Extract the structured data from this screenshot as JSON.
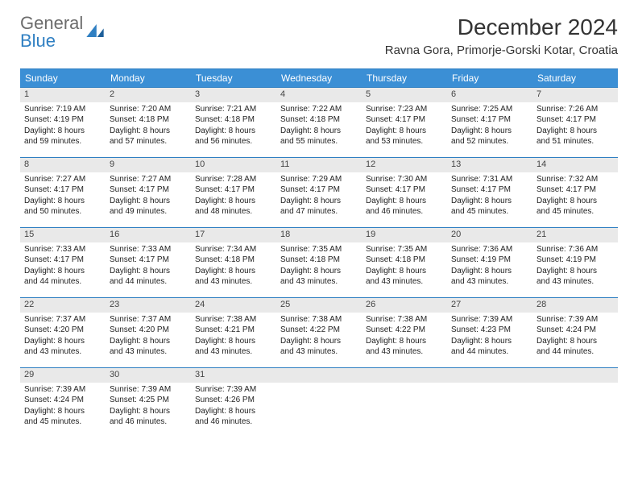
{
  "logo": {
    "text_a": "General",
    "text_b": "Blue"
  },
  "title": "December 2024",
  "location": "Ravna Gora, Primorje-Gorski Kotar, Croatia",
  "colors": {
    "headerBg": "#3b8fd5",
    "headerText": "#ffffff",
    "ruleLine": "#2f7fc2",
    "dayNumBg": "#e9e9e9",
    "bodyText": "#222222",
    "logoGray": "#6c6c6c",
    "logoBlue": "#2f7fc2"
  },
  "daysOfWeek": [
    "Sunday",
    "Monday",
    "Tuesday",
    "Wednesday",
    "Thursday",
    "Friday",
    "Saturday"
  ],
  "weeks": [
    [
      {
        "n": "1",
        "sr": "Sunrise: 7:19 AM",
        "ss": "Sunset: 4:19 PM",
        "d1": "Daylight: 8 hours",
        "d2": "and 59 minutes."
      },
      {
        "n": "2",
        "sr": "Sunrise: 7:20 AM",
        "ss": "Sunset: 4:18 PM",
        "d1": "Daylight: 8 hours",
        "d2": "and 57 minutes."
      },
      {
        "n": "3",
        "sr": "Sunrise: 7:21 AM",
        "ss": "Sunset: 4:18 PM",
        "d1": "Daylight: 8 hours",
        "d2": "and 56 minutes."
      },
      {
        "n": "4",
        "sr": "Sunrise: 7:22 AM",
        "ss": "Sunset: 4:18 PM",
        "d1": "Daylight: 8 hours",
        "d2": "and 55 minutes."
      },
      {
        "n": "5",
        "sr": "Sunrise: 7:23 AM",
        "ss": "Sunset: 4:17 PM",
        "d1": "Daylight: 8 hours",
        "d2": "and 53 minutes."
      },
      {
        "n": "6",
        "sr": "Sunrise: 7:25 AM",
        "ss": "Sunset: 4:17 PM",
        "d1": "Daylight: 8 hours",
        "d2": "and 52 minutes."
      },
      {
        "n": "7",
        "sr": "Sunrise: 7:26 AM",
        "ss": "Sunset: 4:17 PM",
        "d1": "Daylight: 8 hours",
        "d2": "and 51 minutes."
      }
    ],
    [
      {
        "n": "8",
        "sr": "Sunrise: 7:27 AM",
        "ss": "Sunset: 4:17 PM",
        "d1": "Daylight: 8 hours",
        "d2": "and 50 minutes."
      },
      {
        "n": "9",
        "sr": "Sunrise: 7:27 AM",
        "ss": "Sunset: 4:17 PM",
        "d1": "Daylight: 8 hours",
        "d2": "and 49 minutes."
      },
      {
        "n": "10",
        "sr": "Sunrise: 7:28 AM",
        "ss": "Sunset: 4:17 PM",
        "d1": "Daylight: 8 hours",
        "d2": "and 48 minutes."
      },
      {
        "n": "11",
        "sr": "Sunrise: 7:29 AM",
        "ss": "Sunset: 4:17 PM",
        "d1": "Daylight: 8 hours",
        "d2": "and 47 minutes."
      },
      {
        "n": "12",
        "sr": "Sunrise: 7:30 AM",
        "ss": "Sunset: 4:17 PM",
        "d1": "Daylight: 8 hours",
        "d2": "and 46 minutes."
      },
      {
        "n": "13",
        "sr": "Sunrise: 7:31 AM",
        "ss": "Sunset: 4:17 PM",
        "d1": "Daylight: 8 hours",
        "d2": "and 45 minutes."
      },
      {
        "n": "14",
        "sr": "Sunrise: 7:32 AM",
        "ss": "Sunset: 4:17 PM",
        "d1": "Daylight: 8 hours",
        "d2": "and 45 minutes."
      }
    ],
    [
      {
        "n": "15",
        "sr": "Sunrise: 7:33 AM",
        "ss": "Sunset: 4:17 PM",
        "d1": "Daylight: 8 hours",
        "d2": "and 44 minutes."
      },
      {
        "n": "16",
        "sr": "Sunrise: 7:33 AM",
        "ss": "Sunset: 4:17 PM",
        "d1": "Daylight: 8 hours",
        "d2": "and 44 minutes."
      },
      {
        "n": "17",
        "sr": "Sunrise: 7:34 AM",
        "ss": "Sunset: 4:18 PM",
        "d1": "Daylight: 8 hours",
        "d2": "and 43 minutes."
      },
      {
        "n": "18",
        "sr": "Sunrise: 7:35 AM",
        "ss": "Sunset: 4:18 PM",
        "d1": "Daylight: 8 hours",
        "d2": "and 43 minutes."
      },
      {
        "n": "19",
        "sr": "Sunrise: 7:35 AM",
        "ss": "Sunset: 4:18 PM",
        "d1": "Daylight: 8 hours",
        "d2": "and 43 minutes."
      },
      {
        "n": "20",
        "sr": "Sunrise: 7:36 AM",
        "ss": "Sunset: 4:19 PM",
        "d1": "Daylight: 8 hours",
        "d2": "and 43 minutes."
      },
      {
        "n": "21",
        "sr": "Sunrise: 7:36 AM",
        "ss": "Sunset: 4:19 PM",
        "d1": "Daylight: 8 hours",
        "d2": "and 43 minutes."
      }
    ],
    [
      {
        "n": "22",
        "sr": "Sunrise: 7:37 AM",
        "ss": "Sunset: 4:20 PM",
        "d1": "Daylight: 8 hours",
        "d2": "and 43 minutes."
      },
      {
        "n": "23",
        "sr": "Sunrise: 7:37 AM",
        "ss": "Sunset: 4:20 PM",
        "d1": "Daylight: 8 hours",
        "d2": "and 43 minutes."
      },
      {
        "n": "24",
        "sr": "Sunrise: 7:38 AM",
        "ss": "Sunset: 4:21 PM",
        "d1": "Daylight: 8 hours",
        "d2": "and 43 minutes."
      },
      {
        "n": "25",
        "sr": "Sunrise: 7:38 AM",
        "ss": "Sunset: 4:22 PM",
        "d1": "Daylight: 8 hours",
        "d2": "and 43 minutes."
      },
      {
        "n": "26",
        "sr": "Sunrise: 7:38 AM",
        "ss": "Sunset: 4:22 PM",
        "d1": "Daylight: 8 hours",
        "d2": "and 43 minutes."
      },
      {
        "n": "27",
        "sr": "Sunrise: 7:39 AM",
        "ss": "Sunset: 4:23 PM",
        "d1": "Daylight: 8 hours",
        "d2": "and 44 minutes."
      },
      {
        "n": "28",
        "sr": "Sunrise: 7:39 AM",
        "ss": "Sunset: 4:24 PM",
        "d1": "Daylight: 8 hours",
        "d2": "and 44 minutes."
      }
    ],
    [
      {
        "n": "29",
        "sr": "Sunrise: 7:39 AM",
        "ss": "Sunset: 4:24 PM",
        "d1": "Daylight: 8 hours",
        "d2": "and 45 minutes."
      },
      {
        "n": "30",
        "sr": "Sunrise: 7:39 AM",
        "ss": "Sunset: 4:25 PM",
        "d1": "Daylight: 8 hours",
        "d2": "and 46 minutes."
      },
      {
        "n": "31",
        "sr": "Sunrise: 7:39 AM",
        "ss": "Sunset: 4:26 PM",
        "d1": "Daylight: 8 hours",
        "d2": "and 46 minutes."
      },
      {
        "empty": true
      },
      {
        "empty": true
      },
      {
        "empty": true
      },
      {
        "empty": true
      }
    ]
  ]
}
